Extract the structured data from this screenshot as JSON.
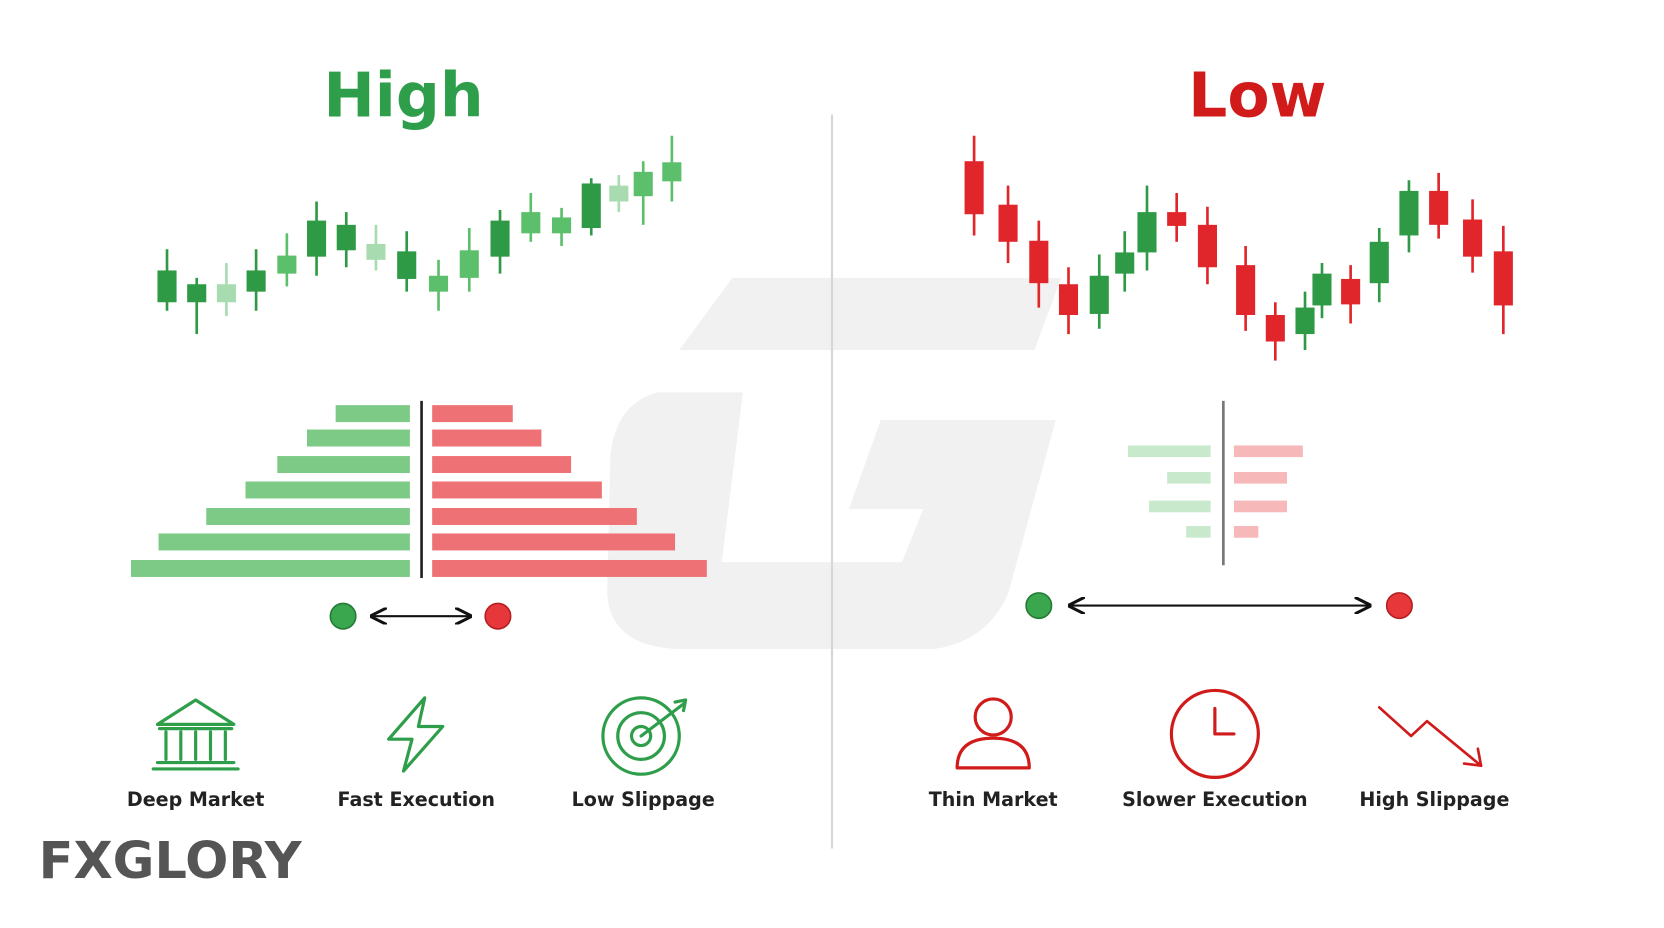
{
  "left": {
    "title": "High",
    "features": [
      {
        "label": "Deep Market"
      },
      {
        "label": "Fast Execution"
      },
      {
        "label": "Low Slippage"
      }
    ]
  },
  "right": {
    "title": "Low",
    "features": [
      {
        "label": "Thin Market"
      },
      {
        "label": "Slower Execution"
      },
      {
        "label": "High Slippage"
      }
    ]
  },
  "logo": {
    "text": "FXGLORY"
  }
}
